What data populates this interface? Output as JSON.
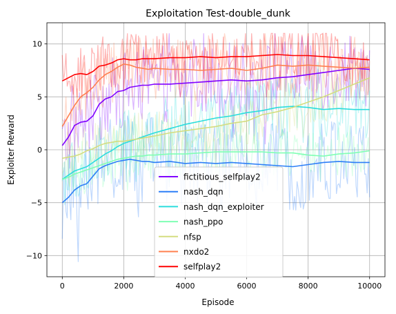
{
  "chart_data": {
    "type": "line",
    "title": "Exploitation Test-double_dunk",
    "xlabel": "Episode",
    "ylabel": "Exploiter Reward",
    "xlim": [
      -500,
      10500
    ],
    "ylim": [
      -12,
      12
    ],
    "xticks": [
      0,
      2000,
      4000,
      6000,
      8000,
      10000
    ],
    "xtick_labels": [
      "0",
      "2000",
      "4000",
      "6000",
      "8000",
      "10000"
    ],
    "yticks": [
      -10,
      -5,
      0,
      5,
      10
    ],
    "ytick_labels": [
      "−10",
      "−5",
      "0",
      "5",
      "10"
    ],
    "grid": true,
    "legend_position": "lower center",
    "raw_noise_alpha": 0.3,
    "series": [
      {
        "name": "fictitious_selfplay2",
        "color": "#8000ff",
        "x": [
          0,
          200,
          400,
          600,
          800,
          1000,
          1200,
          1400,
          1600,
          1800,
          2000,
          2200,
          2400,
          2600,
          2800,
          3000,
          3500,
          4000,
          4500,
          5000,
          5500,
          6000,
          6500,
          7000,
          7500,
          8000,
          8500,
          9000,
          9500,
          10000
        ],
        "values": [
          0.4,
          1.2,
          2.3,
          2.6,
          2.7,
          3.2,
          4.3,
          4.8,
          5.0,
          5.5,
          5.6,
          5.9,
          6.0,
          6.1,
          6.1,
          6.2,
          6.2,
          6.3,
          6.4,
          6.5,
          6.6,
          6.5,
          6.6,
          6.8,
          6.9,
          7.1,
          7.3,
          7.5,
          7.7,
          7.6
        ],
        "noise": 2.6
      },
      {
        "name": "nash_dqn",
        "color": "#2c7ef7",
        "x": [
          0,
          200,
          400,
          600,
          800,
          1000,
          1200,
          1400,
          1600,
          1800,
          2000,
          2200,
          2400,
          2600,
          2800,
          3000,
          3500,
          4000,
          4500,
          5000,
          5500,
          6000,
          6500,
          7000,
          7500,
          8000,
          8500,
          9000,
          9500,
          10000
        ],
        "values": [
          -5.0,
          -4.5,
          -3.8,
          -3.4,
          -3.2,
          -2.5,
          -1.8,
          -1.5,
          -1.3,
          -1.1,
          -1.0,
          -0.9,
          -1.0,
          -1.1,
          -1.1,
          -1.2,
          -1.1,
          -1.3,
          -1.2,
          -1.3,
          -1.2,
          -1.3,
          -1.4,
          -1.5,
          -1.6,
          -1.4,
          -1.2,
          -1.1,
          -1.2,
          -1.2
        ],
        "noise": 3.0
      },
      {
        "name": "nash_dqn_exploiter",
        "color": "#2adddd",
        "x": [
          0,
          200,
          400,
          600,
          800,
          1000,
          1200,
          1400,
          1600,
          1800,
          2000,
          2200,
          2400,
          2600,
          2800,
          3000,
          3500,
          4000,
          4500,
          5000,
          5500,
          6000,
          6500,
          7000,
          7500,
          8000,
          8500,
          9000,
          9500,
          10000
        ],
        "values": [
          -2.8,
          -2.4,
          -2.0,
          -1.8,
          -1.6,
          -1.2,
          -0.8,
          -0.4,
          -0.1,
          0.3,
          0.6,
          0.8,
          1.0,
          1.2,
          1.4,
          1.6,
          2.0,
          2.4,
          2.7,
          3.0,
          3.2,
          3.5,
          3.7,
          4.0,
          4.1,
          4.0,
          3.8,
          3.9,
          3.8,
          3.8
        ],
        "noise": 2.2
      },
      {
        "name": "nash_ppo",
        "color": "#80ffb4",
        "x": [
          0,
          200,
          400,
          600,
          800,
          1000,
          1200,
          1400,
          1600,
          1800,
          2000,
          2200,
          2400,
          2600,
          2800,
          3000,
          3500,
          4000,
          4500,
          5000,
          5500,
          6000,
          6500,
          7000,
          7500,
          8000,
          8500,
          9000,
          9500,
          10000
        ],
        "values": [
          -2.8,
          -2.6,
          -2.3,
          -2.1,
          -1.9,
          -1.7,
          -1.5,
          -1.3,
          -1.1,
          -0.9,
          -0.8,
          -0.7,
          -0.6,
          -0.6,
          -0.5,
          -0.5,
          -0.4,
          -0.4,
          -0.3,
          -0.2,
          -0.2,
          -0.2,
          -0.2,
          -0.3,
          -0.3,
          -0.5,
          -0.6,
          -0.4,
          -0.3,
          -0.1
        ],
        "noise": 1.6
      },
      {
        "name": "nfsp",
        "color": "#d4dd80",
        "x": [
          0,
          200,
          400,
          600,
          800,
          1000,
          1200,
          1400,
          1600,
          1800,
          2000,
          2200,
          2400,
          2600,
          2800,
          3000,
          3500,
          4000,
          4500,
          5000,
          5500,
          6000,
          6500,
          7000,
          7500,
          8000,
          8500,
          9000,
          9500,
          10000
        ],
        "values": [
          -0.8,
          -0.7,
          -0.6,
          -0.4,
          -0.1,
          0.1,
          0.4,
          0.6,
          0.7,
          0.8,
          0.8,
          0.9,
          1.0,
          1.1,
          1.2,
          1.3,
          1.6,
          1.8,
          2.0,
          2.2,
          2.5,
          2.7,
          3.3,
          3.6,
          4.0,
          4.5,
          5.0,
          5.6,
          6.2,
          6.8
        ],
        "noise": 1.8
      },
      {
        "name": "nxdo2",
        "color": "#ff7f4e",
        "x": [
          0,
          200,
          400,
          600,
          800,
          1000,
          1200,
          1400,
          1600,
          1800,
          2000,
          2200,
          2400,
          2600,
          2800,
          3000,
          3500,
          4000,
          4500,
          5000,
          5500,
          6000,
          6500,
          7000,
          7500,
          8000,
          8500,
          9000,
          9500,
          10000
        ],
        "values": [
          2.2,
          3.2,
          4.2,
          5.0,
          5.4,
          5.9,
          6.6,
          7.1,
          7.4,
          7.8,
          8.1,
          8.0,
          7.8,
          7.7,
          7.6,
          7.7,
          7.6,
          7.6,
          7.5,
          7.6,
          7.7,
          7.5,
          7.7,
          8.0,
          7.9,
          8.0,
          7.9,
          7.8,
          7.7,
          7.8
        ],
        "noise": 2.2
      },
      {
        "name": "selfplay2",
        "color": "#ff0000",
        "x": [
          0,
          200,
          400,
          600,
          800,
          1000,
          1200,
          1400,
          1600,
          1800,
          2000,
          2200,
          2400,
          2600,
          2800,
          3000,
          3500,
          4000,
          4500,
          5000,
          5500,
          6000,
          6500,
          7000,
          7500,
          8000,
          8500,
          9000,
          9500,
          10000
        ],
        "values": [
          6.5,
          6.8,
          7.1,
          7.2,
          7.1,
          7.4,
          7.9,
          8.0,
          8.2,
          8.5,
          8.6,
          8.5,
          8.5,
          8.6,
          8.6,
          8.6,
          8.7,
          8.7,
          8.8,
          8.7,
          8.8,
          8.8,
          8.9,
          9.0,
          8.9,
          8.9,
          8.8,
          8.7,
          8.6,
          8.5
        ],
        "noise": 1.8
      }
    ]
  }
}
